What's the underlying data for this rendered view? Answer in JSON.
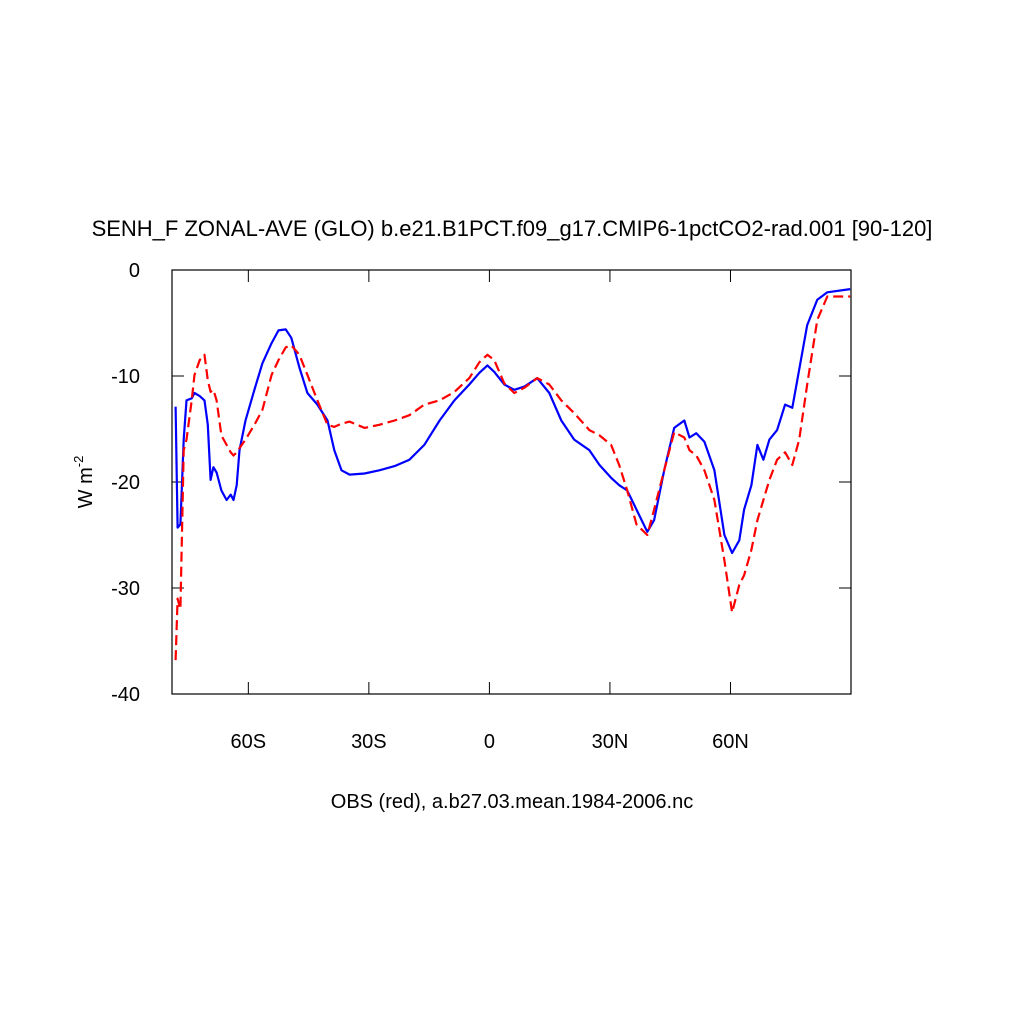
{
  "chart_data": {
    "type": "line",
    "title": "SENH_F ZONAL-AVE (GLO) b.e21.B1PCT.f09_g17.CMIP6-1pctCO2-rad.001 [90-120]",
    "ylabel": "W m",
    "ylabel_superscript": "-2",
    "xlabel": "OBS (red), a.b27.03.mean.1984-2006.nc",
    "xlim": [
      -79,
      90
    ],
    "ylim": [
      -40,
      0
    ],
    "xticks": [
      {
        "value": -60,
        "label": "60S"
      },
      {
        "value": -30,
        "label": "30S"
      },
      0,
      {
        "value": 30,
        "label": "30N"
      },
      {
        "value": 60,
        "label": "60N"
      }
    ],
    "yticks": [
      0,
      -10,
      -20,
      -30,
      -40
    ],
    "x": [
      -78.1,
      -77.6,
      -76.9,
      -76.1,
      -75.4,
      -74.1,
      -73.4,
      -72.1,
      -70.9,
      -70.1,
      -69.4,
      -68.7,
      -67.9,
      -66.7,
      -65.4,
      -64.4,
      -63.7,
      -62.9,
      -62.2,
      -60.7,
      -58.5,
      -56.5,
      -54.2,
      -52.5,
      -50.7,
      -49.3,
      -47.3,
      -45.3,
      -42.8,
      -40.3,
      -38.6,
      -36.8,
      -34.8,
      -31.1,
      -27.4,
      -23.6,
      -19.9,
      -16.2,
      -12.4,
      -8.7,
      -5,
      -2.5,
      -0.5,
      1.2,
      3.7,
      6.2,
      8.7,
      11.9,
      14.9,
      17.9,
      21.1,
      24.9,
      27.4,
      30.3,
      32.3,
      34.3,
      36.6,
      39.3,
      41,
      43.5,
      46,
      48.5,
      49.8,
      51.5,
      53.5,
      56,
      58.5,
      60.4,
      62.2,
      63.4,
      65.2,
      66.7,
      68.2,
      69.7,
      71.6,
      73.6,
      75.4,
      77.1,
      79.1,
      81.6,
      84.1,
      89.8
    ],
    "series": [
      {
        "color": "#0000ff",
        "dash": false,
        "values": [
          -12.9,
          -24.3,
          -24,
          -16,
          -12.3,
          -12.1,
          -11.6,
          -11.9,
          -12.3,
          -14.6,
          -19.8,
          -18.6,
          -19.1,
          -20.8,
          -21.7,
          -21.2,
          -21.7,
          -20.3,
          -17,
          -14.2,
          -11.3,
          -8.8,
          -6.9,
          -5.7,
          -5.6,
          -6.4,
          -9.2,
          -11.6,
          -12.7,
          -14.2,
          -17,
          -18.9,
          -19.3,
          -19.2,
          -18.9,
          -18.5,
          -17.9,
          -16.5,
          -14.2,
          -12.3,
          -10.8,
          -9.7,
          -9,
          -9.6,
          -10.8,
          -11.3,
          -11,
          -10.2,
          -11.6,
          -14.2,
          -16,
          -17,
          -18.4,
          -19.6,
          -20.3,
          -20.8,
          -22.6,
          -24.7,
          -23.6,
          -18.9,
          -14.9,
          -14.2,
          -15.8,
          -15.4,
          -16.2,
          -18.9,
          -25,
          -26.7,
          -25.5,
          -22.6,
          -20.3,
          -16.5,
          -17.9,
          -16,
          -15.1,
          -12.7,
          -13,
          -9.4,
          -5.2,
          -2.8,
          -2.1,
          -1.8
        ]
      },
      {
        "color": "#ff0000",
        "dash": true,
        "values": [
          -36.8,
          -31,
          -32,
          -17,
          -16,
          -12.3,
          -9.9,
          -8.5,
          -8,
          -10.4,
          -11.5,
          -11.3,
          -12.3,
          -15.6,
          -16.5,
          -17.2,
          -17.5,
          -17.2,
          -16.8,
          -16,
          -14.6,
          -13.2,
          -9.9,
          -8.5,
          -7.3,
          -7.1,
          -8,
          -9.9,
          -12.3,
          -14.6,
          -14.8,
          -14.5,
          -14.3,
          -14.9,
          -14.6,
          -14.2,
          -13.7,
          -12.7,
          -12.3,
          -11.5,
          -10.2,
          -8.7,
          -8,
          -8.5,
          -10.7,
          -11.6,
          -11.1,
          -10.2,
          -10.8,
          -12.3,
          -13.5,
          -15.1,
          -15.6,
          -16.5,
          -18.4,
          -20.8,
          -24,
          -25,
          -22.6,
          -18.9,
          -15.3,
          -15.8,
          -17,
          -17.5,
          -18.9,
          -21.7,
          -27.4,
          -32.3,
          -29.7,
          -28.8,
          -26.4,
          -23.6,
          -21.7,
          -19.8,
          -17.9,
          -17.2,
          -18.4,
          -16,
          -10.8,
          -4.7,
          -2.5,
          -2.5
        ]
      }
    ]
  }
}
